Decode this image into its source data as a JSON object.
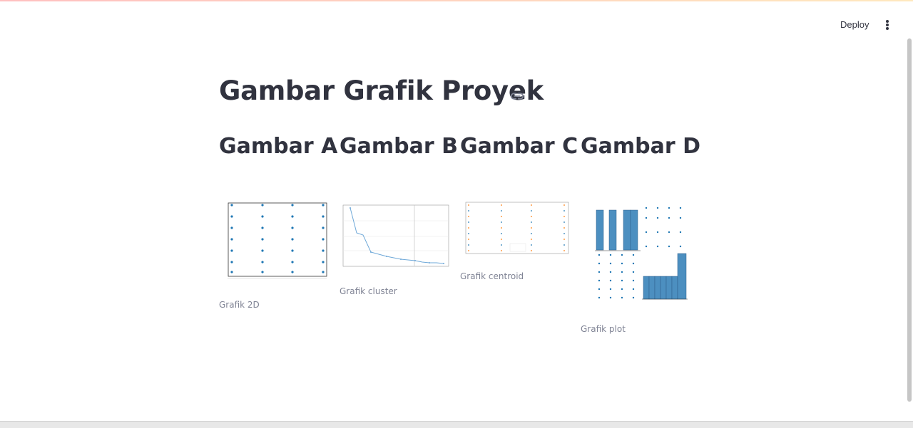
{
  "toolbar": {
    "deploy_label": "Deploy",
    "menu_icon": "kebab-menu-icon"
  },
  "page": {
    "title": "Gambar Grafik Proyek",
    "link_icon": "link-icon"
  },
  "columns": [
    {
      "heading": "Gambar A",
      "caption": "Grafik 2D"
    },
    {
      "heading": "Gambar B",
      "caption": "Grafik cluster"
    },
    {
      "heading": "Gambar C",
      "caption": "Grafik centroid"
    },
    {
      "heading": "Gambar D",
      "caption": "Grafik plot"
    }
  ],
  "colors": {
    "point": "#1f77b4",
    "bar": "#4c8fc0",
    "text": "#31333f",
    "caption": "#808495"
  }
}
